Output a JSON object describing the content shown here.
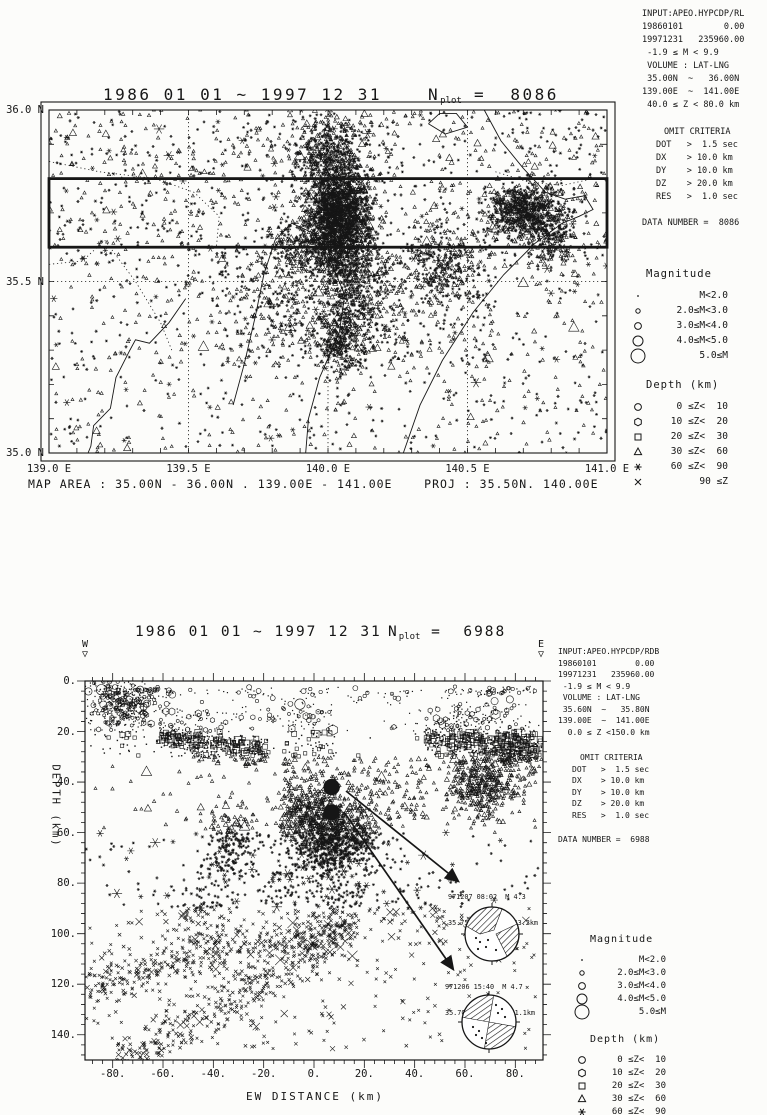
{
  "page": {
    "bg": "#fcfcfa",
    "ink": "#161616"
  },
  "legend": {
    "magnitude_title": "Magnitude",
    "magnitude": [
      {
        "sym": "dot",
        "label": "M<2.0"
      },
      {
        "sym": "c1",
        "label": "2.0≤M<3.0"
      },
      {
        "sym": "c2",
        "label": "3.0≤M<4.0"
      },
      {
        "sym": "c3",
        "label": "4.0≤M<5.0"
      },
      {
        "sym": "c4",
        "label": "5.0≤M"
      }
    ],
    "depth_title": "Depth (km)",
    "depth": [
      {
        "sym": "circle",
        "label": " 0 ≤Z<  10"
      },
      {
        "sym": "hex",
        "label": "10 ≤Z<  20"
      },
      {
        "sym": "square",
        "label": "20 ≤Z<  30"
      },
      {
        "sym": "triangle",
        "label": "30 ≤Z<  60"
      },
      {
        "sym": "star",
        "label": "60 ≤Z<  90"
      },
      {
        "sym": "x",
        "label": "90 ≤Z"
      }
    ]
  },
  "chart_data": [
    {
      "type": "scatter",
      "name": "epicenter-map",
      "title": "1986 01 01 ~ 1997 12 31",
      "nplot": {
        "n": "N",
        "sub": "plot",
        "eq": " =  8086"
      },
      "xlim": [
        139.0,
        141.0
      ],
      "ylim": [
        35.0,
        36.0
      ],
      "x_ticks": [
        {
          "v": 139.0,
          "label": "139.0 E"
        },
        {
          "v": 139.5,
          "label": "139.5 E"
        },
        {
          "v": 140.0,
          "label": "140.0 E"
        },
        {
          "v": 140.5,
          "label": "140.5 E"
        },
        {
          "v": 141.0,
          "label": "141.0 E"
        }
      ],
      "y_ticks": [
        {
          "v": 36.0,
          "label": "36.0 N"
        },
        {
          "v": 35.5,
          "label": "35.5 N"
        },
        {
          "v": 35.0,
          "label": "35.0 N"
        }
      ],
      "grid": {
        "x": [
          139.5,
          140.0,
          140.5
        ],
        "y": [
          35.5
        ]
      },
      "section_box": {
        "lon0": 139.0,
        "lat0": 35.6,
        "lon1": 141.0,
        "lat1": 35.8
      },
      "footer": "MAP AREA : 35.00N - 36.00N . 139.00E - 141.00E    PROJ : 35.50N. 140.00E",
      "depth_filter": [
        40,
        80
      ],
      "side": {
        "info": [
          "INPUT:APEO.HYPCDP/RL",
          "",
          "19860101        0.00",
          "19971231   235960.00",
          " -1.9 ≤ M < 9.9",
          " VOLUME : LAT-LNG",
          " 35.00N  ~   36.00N",
          "139.00E  ~  141.00E",
          " 40.0 ≤ Z < 80.0 km"
        ],
        "omit_title": "OMIT CRITERIA",
        "omit": [
          "DOT   >  1.5 sec",
          "DX    > 10.0 km",
          "DY    > 10.0 km",
          "DZ    > 20.0 km",
          "RES   >  1.0 sec"
        ],
        "data_number": "DATA NUMBER =  8086"
      },
      "clusters": [
        {
          "kind": "gauss",
          "cx": 140.04,
          "cy": 35.7,
          "sx": 0.055,
          "sy": 0.065,
          "n": 1500
        },
        {
          "kind": "gauss",
          "cx": 140.0,
          "cy": 35.87,
          "sx": 0.065,
          "sy": 0.06,
          "n": 450
        },
        {
          "kind": "gauss",
          "cx": 139.97,
          "cy": 35.6,
          "sx": 0.09,
          "sy": 0.05,
          "n": 450
        },
        {
          "kind": "gauss",
          "cx": 140.07,
          "cy": 35.52,
          "sx": 0.05,
          "sy": 0.07,
          "n": 300
        },
        {
          "kind": "gauss",
          "cx": 140.04,
          "cy": 35.33,
          "sx": 0.05,
          "sy": 0.05,
          "n": 280
        },
        {
          "kind": "gauss",
          "cx": 140.7,
          "cy": 35.71,
          "sx": 0.065,
          "sy": 0.04,
          "n": 650
        },
        {
          "kind": "gauss",
          "cx": 140.8,
          "cy": 35.63,
          "sx": 0.05,
          "sy": 0.045,
          "n": 220
        },
        {
          "kind": "gauss",
          "cx": 140.42,
          "cy": 35.54,
          "sx": 0.07,
          "sy": 0.06,
          "n": 260
        },
        {
          "kind": "gauss",
          "cx": 140.16,
          "cy": 35.45,
          "sx": 0.06,
          "sy": 0.08,
          "n": 180
        },
        {
          "kind": "gauss",
          "cx": 139.86,
          "cy": 35.42,
          "sx": 0.09,
          "sy": 0.07,
          "n": 140
        },
        {
          "kind": "uniform",
          "x0": 139.0,
          "x1": 141.0,
          "y0": 35.0,
          "y1": 36.0,
          "n": 1300
        },
        {
          "kind": "uniform",
          "x0": 139.6,
          "x1": 140.6,
          "y0": 35.25,
          "y1": 35.6,
          "n": 350
        },
        {
          "kind": "uniform",
          "x0": 139.0,
          "x1": 141.0,
          "y0": 35.55,
          "y1": 36.0,
          "n": 500
        }
      ],
      "geo": {
        "coast": [
          [
            [
              139.49,
              35.45
            ],
            [
              139.43,
              35.38
            ],
            [
              139.36,
              35.32
            ],
            [
              139.31,
              35.33
            ],
            [
              139.29,
              35.3
            ],
            [
              139.24,
              35.22
            ],
            [
              139.22,
              35.13
            ],
            [
              139.16,
              35.08
            ],
            [
              139.15,
              35.02
            ],
            [
              139.14,
              35.0
            ]
          ],
          [
            [
              139.66,
              35.14
            ],
            [
              139.7,
              35.26
            ],
            [
              139.74,
              35.4
            ],
            [
              139.77,
              35.52
            ],
            [
              139.81,
              35.62
            ],
            [
              139.87,
              35.67
            ],
            [
              139.95,
              35.64
            ],
            [
              140.01,
              35.56
            ],
            [
              140.06,
              35.46
            ],
            [
              140.04,
              35.35
            ],
            [
              139.97,
              35.22
            ],
            [
              139.93,
              35.1
            ],
            [
              139.92,
              35.0
            ]
          ],
          [
            [
              140.27,
              35.0
            ],
            [
              140.33,
              35.14
            ],
            [
              140.41,
              35.27
            ],
            [
              140.52,
              35.41
            ],
            [
              140.63,
              35.52
            ],
            [
              140.74,
              35.61
            ],
            [
              140.84,
              35.67
            ],
            [
              140.9,
              35.69
            ],
            [
              140.95,
              35.71
            ],
            [
              140.92,
              35.75
            ],
            [
              140.85,
              35.74
            ],
            [
              140.78,
              35.76
            ],
            [
              140.7,
              35.83
            ],
            [
              140.62,
              35.91
            ],
            [
              140.56,
              36.0
            ]
          ],
          [
            [
              140.36,
              35.96
            ],
            [
              140.42,
              35.93
            ],
            [
              140.5,
              35.95
            ],
            [
              140.46,
              35.99
            ],
            [
              140.4,
              35.99
            ],
            [
              140.36,
              35.96
            ]
          ]
        ],
        "dotted": [
          [
            [
              139.0,
              35.85
            ],
            [
              139.18,
              35.82
            ],
            [
              139.38,
              35.8
            ],
            [
              139.52,
              35.76
            ],
            [
              139.61,
              35.69
            ],
            [
              139.6,
              35.6
            ]
          ],
          [
            [
              139.2,
              35.62
            ],
            [
              139.31,
              35.5
            ],
            [
              139.4,
              35.38
            ],
            [
              139.44,
              35.3
            ]
          ],
          [
            [
              140.6,
              35.82
            ],
            [
              140.72,
              35.79
            ],
            [
              140.84,
              35.78
            ],
            [
              140.95,
              35.8
            ]
          ],
          [
            [
              139.0,
              35.55
            ],
            [
              139.12,
              35.56
            ],
            [
              139.2,
              35.62
            ]
          ]
        ]
      }
    },
    {
      "type": "scatter",
      "name": "ew-depth-section",
      "title": "1986 01 01 ~ 1997 12 31",
      "nplot": {
        "n": "N",
        "sub": "plot",
        "eq": " =  6988"
      },
      "xlabel": "EW DISTANCE (km)",
      "ylabel": "DEPTH (km)",
      "w_marker": "W",
      "e_marker": "E",
      "marker_glyph": "▽",
      "xlim": [
        -91,
        91
      ],
      "ylim": [
        0,
        150
      ],
      "x_ticks": [
        {
          "v": -80,
          "label": "-80."
        },
        {
          "v": -60,
          "label": "-60."
        },
        {
          "v": -40,
          "label": "-40."
        },
        {
          "v": -20,
          "label": "-20."
        },
        {
          "v": 0,
          "label": "0."
        },
        {
          "v": 20,
          "label": "20."
        },
        {
          "v": 40,
          "label": "40."
        },
        {
          "v": 60,
          "label": "60."
        },
        {
          "v": 80,
          "label": "80."
        }
      ],
      "y_ticks": [
        {
          "v": 0,
          "label": "0."
        },
        {
          "v": 20,
          "label": "20."
        },
        {
          "v": 40,
          "label": "40."
        },
        {
          "v": 60,
          "label": "60."
        },
        {
          "v": 80,
          "label": "80."
        },
        {
          "v": 100,
          "label": "100."
        },
        {
          "v": 120,
          "label": "120."
        },
        {
          "v": 140,
          "label": "140."
        }
      ],
      "side": {
        "info": [
          "INPUT:APEO.HYPCDP/RDB",
          "",
          "19860101        0.00",
          "19971231   235960.00",
          " -1.9 ≤ M < 9.9",
          " VOLUME : LAT-LNG",
          " 35.60N  ~   35.80N",
          "139.00E  ~  141.00E",
          "  0.0 ≤ Z <150.0 km"
        ],
        "omit_title": "OMIT CRITERIA",
        "omit": [
          "DOT   >  1.5 sec",
          "DX    > 10.0 km",
          "DY    > 10.0 km",
          "DZ    > 20.0 km",
          "RES   >  1.0 sec"
        ],
        "data_number": "DATA NUMBER =  6988"
      },
      "clusters": [
        {
          "kind": "gauss",
          "cx": -76,
          "cy": 10,
          "sx": 8,
          "sy": 6,
          "n": 420
        },
        {
          "kind": "band",
          "x0": -62,
          "y0": 21,
          "x1": -18,
          "y1": 29,
          "w": 3,
          "n": 430
        },
        {
          "kind": "band",
          "x0": 44,
          "y0": 23,
          "x1": 89,
          "y1": 27,
          "w": 3.5,
          "n": 430
        },
        {
          "kind": "gauss",
          "cx": 66,
          "cy": 42,
          "sx": 7,
          "sy": 6,
          "n": 380
        },
        {
          "kind": "gauss",
          "cx": 8,
          "cy": 63,
          "sx": 9,
          "sy": 7,
          "n": 900
        },
        {
          "kind": "gauss",
          "cx": -3,
          "cy": 52,
          "sx": 6,
          "sy": 5,
          "n": 220
        },
        {
          "kind": "uniform",
          "x0": -13,
          "x1": 8,
          "y0": 8,
          "y1": 48,
          "n": 170
        },
        {
          "kind": "gauss",
          "cx": -33,
          "cy": 66,
          "sx": 6,
          "sy": 9,
          "n": 230
        },
        {
          "kind": "band",
          "x0": -91,
          "y0": 121,
          "x1": 18,
          "y1": 95,
          "w": 4,
          "n": 430
        },
        {
          "kind": "band",
          "x0": -78,
          "y0": 151,
          "x1": 16,
          "y1": 99,
          "w": 5,
          "n": 380
        },
        {
          "kind": "uniform",
          "x0": -91,
          "x1": 89,
          "y0": 2,
          "y1": 146,
          "n": 520
        },
        {
          "kind": "band",
          "x0": -86,
          "y0": 4,
          "x1": -56,
          "y1": 4,
          "w": 0.8,
          "n": 70
        },
        {
          "kind": "band",
          "x0": 52,
          "y0": 4,
          "x1": 88,
          "y1": 4,
          "w": 0.8,
          "n": 60
        },
        {
          "kind": "band",
          "x0": -48,
          "y0": 5,
          "x1": 40,
          "y1": 5,
          "w": 1.2,
          "n": 55
        },
        {
          "kind": "gauss",
          "cx": 62,
          "cy": 15,
          "sx": 11,
          "sy": 4,
          "n": 140
        },
        {
          "kind": "gauss",
          "cx": -45,
          "cy": 92,
          "sx": 8,
          "sy": 7,
          "n": 120
        },
        {
          "kind": "band",
          "x0": -20,
          "y0": 80,
          "x1": 20,
          "y1": 88,
          "w": 6,
          "n": 150
        },
        {
          "kind": "gauss",
          "cx": 80,
          "cy": 27,
          "sx": 6,
          "sy": 5,
          "n": 200
        },
        {
          "kind": "uniform",
          "x0": 20,
          "x1": 60,
          "y0": 78,
          "y1": 105,
          "n": 80
        },
        {
          "kind": "band",
          "x0": -55,
          "y0": 13,
          "x1": -10,
          "y1": 15,
          "w": 1.5,
          "n": 45
        },
        {
          "kind": "uniform",
          "x0": 5,
          "x1": 45,
          "y0": 30,
          "y1": 55,
          "n": 140
        }
      ],
      "highlight_events": [
        {
          "x": 7,
          "z": 42
        },
        {
          "x": 7,
          "z": 52
        }
      ],
      "annotations": [
        {
          "lines": [
            "971207 08:02  M 4.3",
            "35.75N 140.10E H43.2km"
          ]
        },
        {
          "lines": [
            "971206 15:40  M 4.7",
            "35.70N 140.12E H51.1km"
          ]
        }
      ]
    }
  ]
}
